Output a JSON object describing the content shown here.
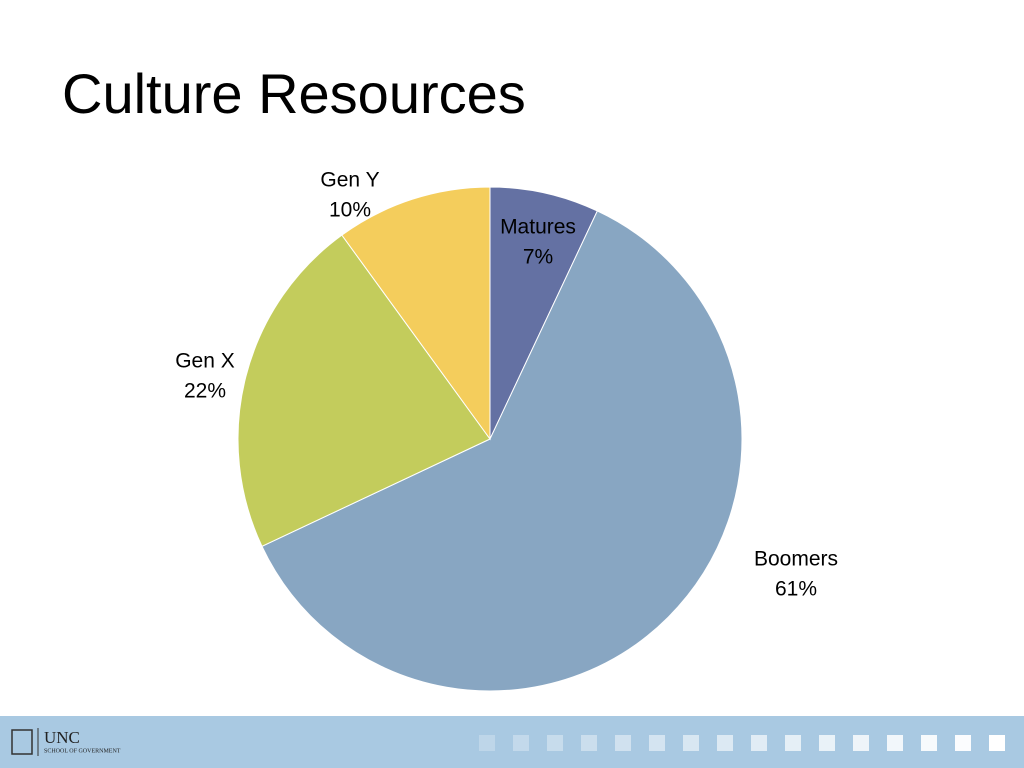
{
  "chart_data": {
    "type": "pie",
    "title": "Culture Resources",
    "categories": [
      "Matures",
      "Boomers",
      "Gen X",
      "Gen Y"
    ],
    "values": [
      7,
      61,
      22,
      10
    ],
    "value_labels": [
      "7%",
      "61%",
      "22%",
      "10%"
    ],
    "colors": [
      "#6471a3",
      "#88a6c2",
      "#c3cc5c",
      "#f4cd5c"
    ]
  },
  "footer": {
    "logo_title": "UNC",
    "logo_subtitle": "SCHOOL OF GOVERNMENT"
  }
}
